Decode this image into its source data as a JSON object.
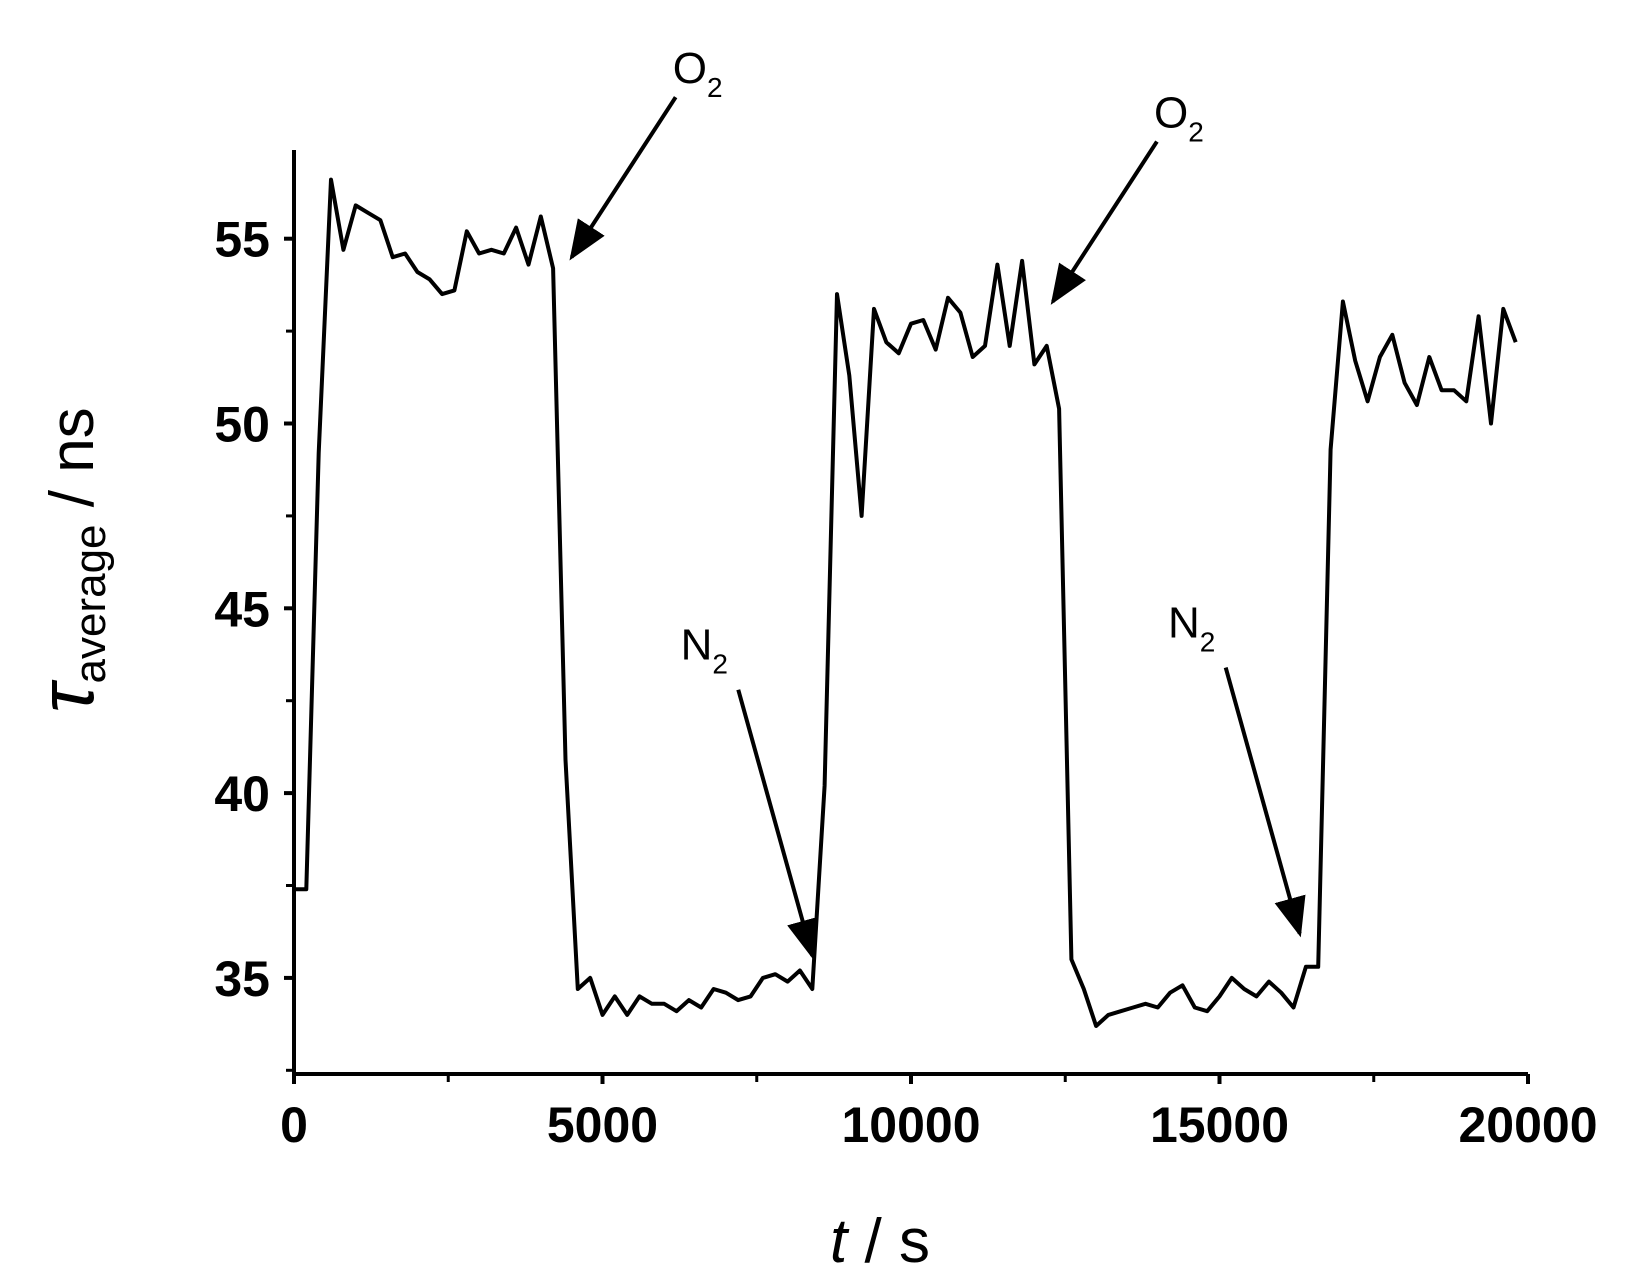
{
  "chart_data": {
    "type": "line",
    "title": "",
    "xlabel": {
      "var": "t",
      "unit": " / s"
    },
    "ylabel": {
      "var": "τ",
      "sub": "average",
      "unit": " / ns"
    },
    "xlim": [
      0,
      20000
    ],
    "ylim": [
      32.4,
      57.4
    ],
    "xticks": [
      0,
      5000,
      10000,
      15000,
      20000
    ],
    "yticks": [
      35,
      40,
      45,
      50,
      55
    ],
    "grid": false,
    "legend": "none",
    "line_color": "#000000",
    "series": [
      {
        "x": [
          0,
          200,
          400,
          600,
          800,
          1000,
          1200,
          1400,
          1600,
          1800,
          2000,
          2200,
          2400,
          2600,
          2800,
          3000,
          3200,
          3400,
          3600,
          3800,
          4000,
          4200,
          4400,
          4600,
          4800,
          5000,
          5200,
          5400,
          5600,
          5800,
          6000,
          6200,
          6400,
          6600,
          6800,
          7000,
          7200,
          7400,
          7600,
          7800,
          8000,
          8200,
          8400,
          8600,
          8800,
          9000,
          9200,
          9400,
          9600,
          9800,
          10000,
          10200,
          10400,
          10600,
          10800,
          11000,
          11200,
          11400,
          11600,
          11800,
          12000,
          12200,
          12400,
          12600,
          12800,
          13000,
          13200,
          13400,
          13600,
          13800,
          14000,
          14200,
          14400,
          14600,
          14800,
          15000,
          15200,
          15400,
          15600,
          15800,
          16000,
          16200,
          16400,
          16600,
          16800,
          17000,
          17200,
          17400,
          17600,
          17800,
          18000,
          18200,
          18400,
          18600,
          18800,
          19000,
          19200,
          19400,
          19600,
          19800
        ],
        "y": [
          37.4,
          37.4,
          49.2,
          56.6,
          54.7,
          55.9,
          55.7,
          55.5,
          54.5,
          54.6,
          54.1,
          53.9,
          53.5,
          53.6,
          55.2,
          54.6,
          54.7,
          54.6,
          55.3,
          54.3,
          55.6,
          54.2,
          40.9,
          34.7,
          35.0,
          34.0,
          34.5,
          34.0,
          34.5,
          34.3,
          34.3,
          34.1,
          34.4,
          34.2,
          34.7,
          34.6,
          34.4,
          34.5,
          35.0,
          35.1,
          34.9,
          35.2,
          34.7,
          40.2,
          53.5,
          51.3,
          47.5,
          53.1,
          52.2,
          51.9,
          52.7,
          52.8,
          52.0,
          53.4,
          53.0,
          51.8,
          52.1,
          54.3,
          52.1,
          54.4,
          51.6,
          52.1,
          50.4,
          35.5,
          34.7,
          33.7,
          34.0,
          34.1,
          34.2,
          34.3,
          34.2,
          34.6,
          34.8,
          34.2,
          34.1,
          34.5,
          35.0,
          34.7,
          34.5,
          34.9,
          34.6,
          34.2,
          35.3,
          35.3,
          49.3,
          53.3,
          51.7,
          50.6,
          51.8,
          52.4,
          51.1,
          50.5,
          51.8,
          50.9,
          50.9,
          50.6,
          52.9,
          50.0,
          53.1,
          52.2
        ]
      }
    ],
    "annotations": [
      {
        "base": "O",
        "sub": "2",
        "x": 4500,
        "y": 54.5
      },
      {
        "base": "O",
        "sub": "2",
        "x": 12300,
        "y": 53.3
      },
      {
        "base": "N",
        "sub": "2",
        "x": 8400,
        "y": 35.6
      },
      {
        "base": "N",
        "sub": "2",
        "x": 16300,
        "y": 36.2
      }
    ]
  }
}
